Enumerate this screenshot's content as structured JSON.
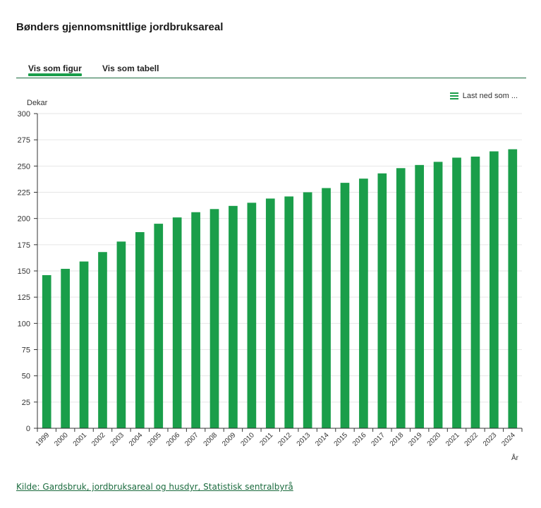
{
  "page_title": "Bønders gjennomsnittlige jordbruksareal",
  "tabs": [
    {
      "label": "Vis som figur",
      "active": true
    },
    {
      "label": "Vis som tabell",
      "active": false
    }
  ],
  "download_label": "Last ned som ...",
  "source_label": "Kilde: Gardsbruk, jordbruksareal og husdyr, Statistisk sentralbyrå",
  "colors": {
    "bar": "#1a9e4a",
    "accent": "#1b6b3e"
  },
  "chart_data": {
    "type": "bar",
    "title": "",
    "ylabel": "Dekar",
    "xlabel": "År",
    "ylim": [
      0,
      300
    ],
    "yticks": [
      0,
      25,
      50,
      75,
      100,
      125,
      150,
      175,
      200,
      225,
      250,
      275,
      300
    ],
    "grid": true,
    "categories": [
      "1999",
      "2000",
      "2001",
      "2002",
      "2003",
      "2004",
      "2005",
      "2006",
      "2007",
      "2008",
      "2009",
      "2010",
      "2011",
      "2012",
      "2013",
      "2014",
      "2015",
      "2016",
      "2017",
      "2018",
      "2019",
      "2020",
      "2021",
      "2022",
      "2023",
      "2024"
    ],
    "values": [
      146,
      152,
      159,
      168,
      178,
      187,
      195,
      201,
      206,
      209,
      212,
      215,
      219,
      221,
      225,
      229,
      234,
      238,
      243,
      248,
      251,
      254,
      258,
      259,
      264,
      266
    ]
  }
}
